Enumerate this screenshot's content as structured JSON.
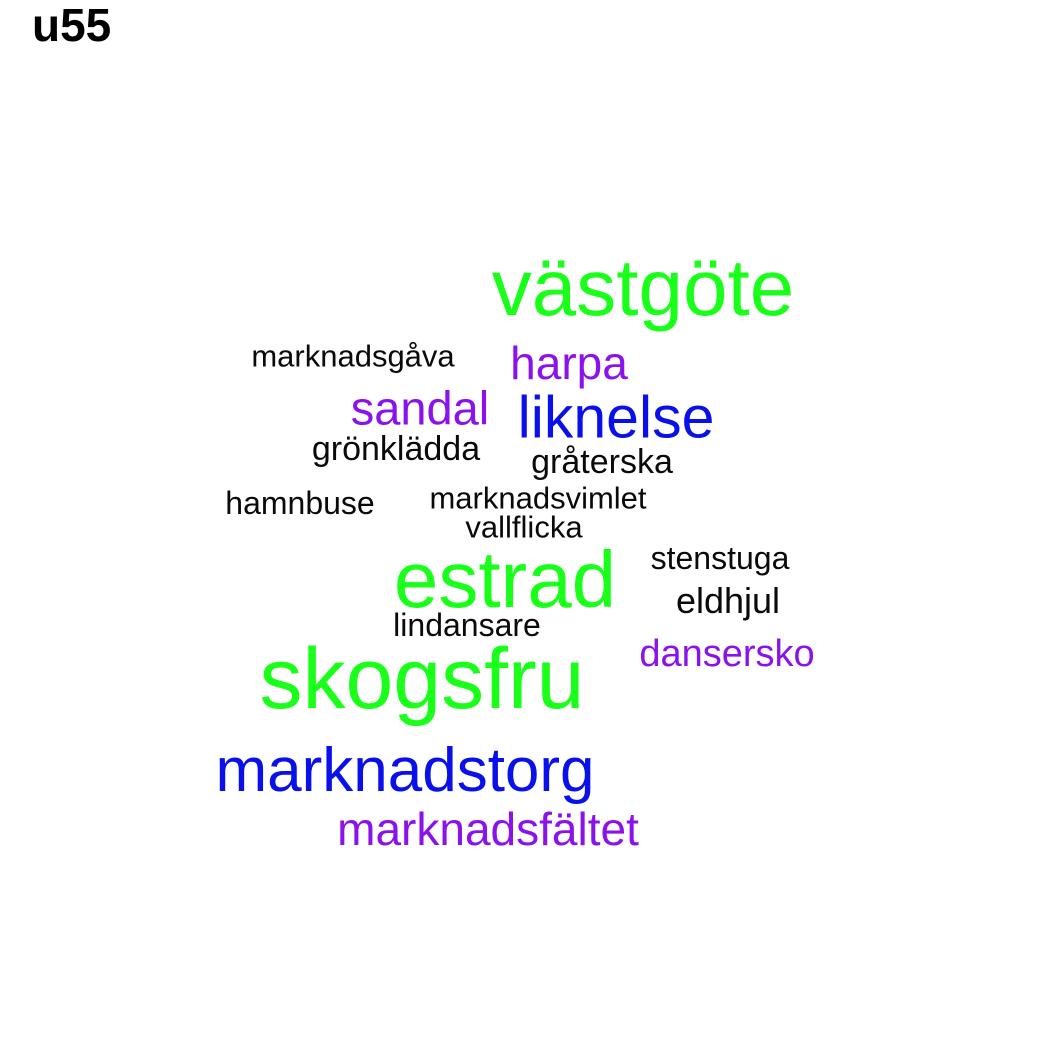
{
  "label": "u55",
  "colors": {
    "green": "#19ff19",
    "purple": "#8a12ea",
    "blue": "#0a10ea",
    "black": "#0a0a0a"
  },
  "words": [
    {
      "text": "västgöte",
      "color": "green"
    },
    {
      "text": "marknadsgåva",
      "color": "black"
    },
    {
      "text": "harpa",
      "color": "purple"
    },
    {
      "text": "sandal",
      "color": "purple"
    },
    {
      "text": "liknelse",
      "color": "blue"
    },
    {
      "text": "grönklädda",
      "color": "black"
    },
    {
      "text": "gråterska",
      "color": "black"
    },
    {
      "text": "hamnbuse",
      "color": "black"
    },
    {
      "text": "marknadsvimlet",
      "color": "black"
    },
    {
      "text": "vallflicka",
      "color": "black"
    },
    {
      "text": "estrad",
      "color": "green"
    },
    {
      "text": "stenstuga",
      "color": "black"
    },
    {
      "text": "eldhjul",
      "color": "black"
    },
    {
      "text": "lindansare",
      "color": "black"
    },
    {
      "text": "skogsfru",
      "color": "green"
    },
    {
      "text": "dansersko",
      "color": "purple"
    },
    {
      "text": "marknadstorg",
      "color": "blue"
    },
    {
      "text": "marknadsfältet",
      "color": "purple"
    }
  ]
}
